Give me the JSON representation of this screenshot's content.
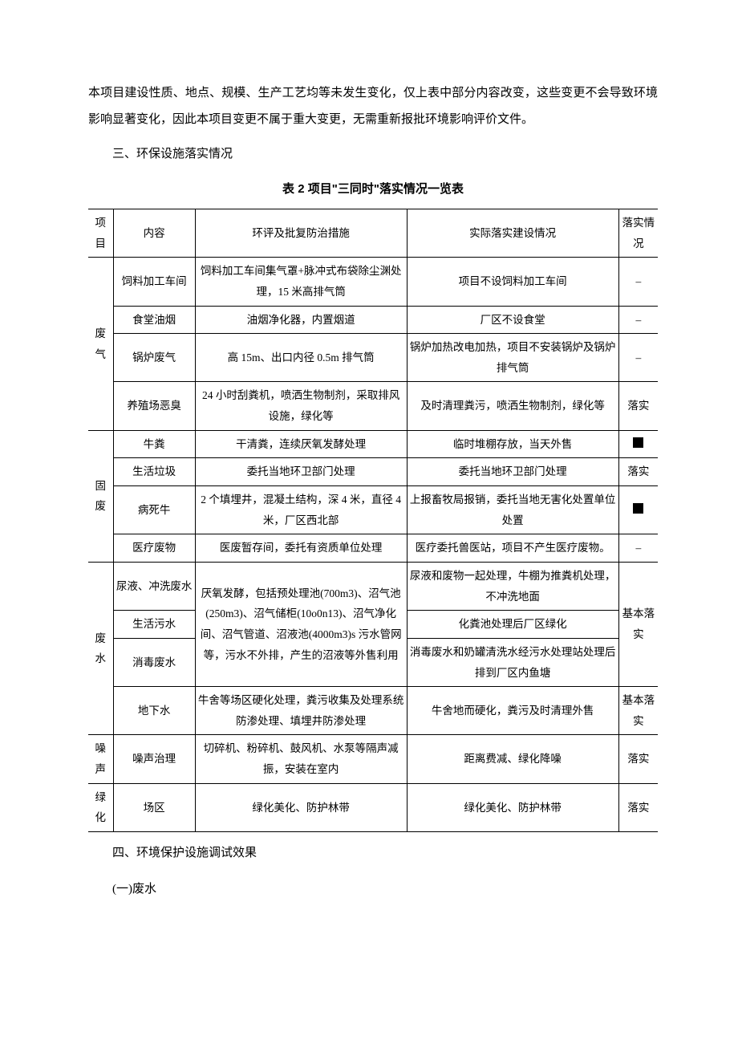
{
  "intro_paragraph": "本项目建设性质、地点、规模、生产工艺均等未发生变化，仅上表中部分内容改变，这些变更不会导致环境影响显著变化，因此本项目变更不属于重大变更，无需重新报批环境影响评价文件。",
  "section3_heading": "三、环保设施落实情况",
  "table_title": "表 2 项目\"三同时\"落实情况一览表",
  "headers": {
    "col1": "项目",
    "col2": "内容",
    "col3": "环评及批复防治措施",
    "col4": "实际落实建设情况",
    "col5": "落实情况"
  },
  "groups": [
    {
      "category": "废气",
      "rows": [
        {
          "content": "饲料加工车间",
          "measure": "饲料加工车间集气罩+脉冲式布袋除尘渊处理，15 米高排气筒",
          "actual": "项目不设饲料加工车间",
          "status": "–"
        },
        {
          "content": "食堂油烟",
          "measure": "油烟净化器，内置烟道",
          "actual": "厂区不设食堂",
          "status": "–"
        },
        {
          "content": "锅炉废气",
          "measure": "高 15m、出口内径 0.5m 排气筒",
          "actual": "锅炉加热改电加热，项目不安装锅炉及锅炉排气筒",
          "status": "–"
        },
        {
          "content": "养殖场恶臭",
          "measure": "24 小时刮粪机，喷洒生物制剂，采取排风设施，绿化等",
          "actual": "及时清理粪污，喷洒生物制剂，绿化等",
          "status": "落实"
        }
      ]
    },
    {
      "category": "固废",
      "rows": [
        {
          "content": "牛粪",
          "measure": "干清粪，连续厌氧发酵处理",
          "actual": "临时堆棚存放，当天外售",
          "status": "square"
        },
        {
          "content": "生活垃圾",
          "measure": "委托当地环卫部门处理",
          "actual": "委托当地环卫部门处理",
          "status": "落实"
        },
        {
          "content": "病死牛",
          "measure": "2 个填埋井，混凝土结构，深 4 米，直径 4 米，厂区西北部",
          "actual": "上报畜牧局报销，委托当地无害化处置单位处置",
          "status": "square"
        },
        {
          "content": "医疗废物",
          "measure": "医废暂存间，委托有资质单位处理",
          "actual": "医疗委托兽医站，项目不产生医疗废物。",
          "status": "–"
        }
      ]
    }
  ],
  "wastewater": {
    "category": "废水",
    "merged_measure": "厌氧发酵，包括预处理池(700m3)、沼气池(250m3)、沼气储柜(10o0n13)、沼气净化间、沼气管道、沼液池(4000m3)s 污水管网等，污水不外排，产生的沼液等外售利用",
    "rows": [
      {
        "content": "尿液、冲洗废水",
        "actual": "尿液和废物一起处理，牛棚为推粪机处理，不冲洗地面"
      },
      {
        "content": "生活污水",
        "actual": "化粪池处理后厂区绿化"
      },
      {
        "content": "消毒废水",
        "actual": "消毒废水和奶罐清洗水经污水处理站处理后排到厂区内鱼塘"
      }
    ],
    "status_merged": "基本落实",
    "groundwater": {
      "content": "地下水",
      "measure": "牛舍等场区硬化处理，粪污收集及处理系统防渗处理、填埋井防渗处理",
      "actual": "牛舍地而硬化，粪污及时清理外售",
      "status": "基本落实"
    }
  },
  "noise": {
    "category": "噪声",
    "content": "噪声治理",
    "measure": "切碎机、粉碎机、鼓风机、水泵等隔声减振，安装在室内",
    "actual": "距离费减、绿化降噪",
    "status": "落实"
  },
  "green": {
    "category": "绿化",
    "content": "场区",
    "measure": "绿化美化、防护林带",
    "actual": "绿化美化、防护林带",
    "status": "落实"
  },
  "section4_heading": "四、环境保护设施调试效果",
  "subsection1": "(一)废水"
}
